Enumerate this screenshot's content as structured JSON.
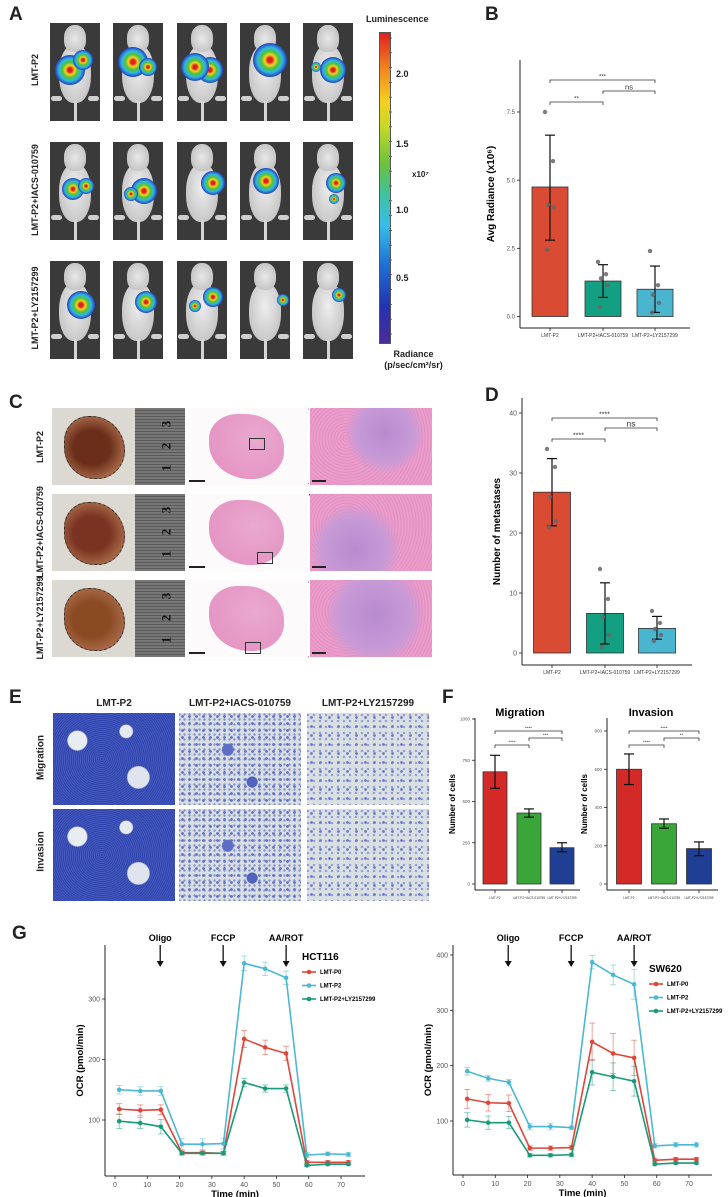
{
  "panel_labels": {
    "a": "A",
    "b": "B",
    "c": "C",
    "d": "D",
    "e": "E",
    "f": "F",
    "g": "G"
  },
  "panel_a": {
    "row_labels": [
      "LMT-P2",
      "LMT-P2+IACS-010759",
      "LMT-P2+LY2157299"
    ],
    "colorbar": {
      "title": "Luminescence",
      "ticks": [
        "2.0",
        "1.5",
        "1.0",
        "0.5"
      ],
      "multiplier": "x10⁷",
      "unit_line1": "Radiance",
      "unit_line2": "(p/sec/cm²/sr)",
      "colormap": [
        "#4b2c9a",
        "#2233b0",
        "#1f6fd6",
        "#38bde8",
        "#3fc2a0",
        "#6cc23a",
        "#c8d82a",
        "#f5d020",
        "#f08a20",
        "#e02020"
      ]
    }
  },
  "panel_c": {
    "row_labels": [
      "LMT-P2",
      "LMT-P2+IACS-010759",
      "LMT-P2+LY2157299"
    ],
    "ruler_marks": [
      "1",
      "2",
      "3"
    ]
  },
  "panel_e": {
    "column_headers": [
      "LMT-P2",
      "LMT-P2+IACS-010759",
      "LMT-P2+LY2157299"
    ],
    "row_labels": [
      "Migration",
      "Invasion"
    ]
  },
  "chart_data": [
    {
      "panel": "B",
      "type": "bar",
      "categories": [
        "LMT-P2",
        "LMT-P2+IACS-010759",
        "LMT-P2+LY2157299"
      ],
      "values": [
        4.75,
        1.3,
        1.0
      ],
      "error_bars": [
        [
          2.8,
          6.65
        ],
        [
          0.7,
          1.9
        ],
        [
          0.15,
          1.85
        ]
      ],
      "points": [
        [
          7.5,
          5.7,
          4.1,
          4.0,
          2.45
        ],
        [
          2.0,
          1.55,
          1.4,
          1.15,
          0.35
        ],
        [
          2.4,
          1.15,
          0.8,
          0.5,
          0.15
        ]
      ],
      "colors": [
        "#d94b33",
        "#13a082",
        "#4ab5cf"
      ],
      "ylabel": "Avg Radiance (x10⁶)",
      "xlabel": "",
      "yticks": [
        "0.0",
        "2.5",
        "5.0",
        "7.5"
      ],
      "ytick_values": [
        0,
        2.5,
        5,
        7.5
      ],
      "ylim": [
        0,
        9
      ],
      "significance": [
        {
          "pair": [
            0,
            1
          ],
          "label": "**"
        },
        {
          "pair": [
            1,
            2
          ],
          "label": "ns"
        },
        {
          "pair": [
            0,
            2
          ],
          "label": "***"
        }
      ]
    },
    {
      "panel": "D",
      "type": "bar",
      "categories": [
        "LMT-P2",
        "LMT-P2+IACS-010759",
        "LMT-P2+LY2157299"
      ],
      "values": [
        26.8,
        6.6,
        4.1
      ],
      "error_bars": [
        [
          21.2,
          32.4
        ],
        [
          1.5,
          11.7
        ],
        [
          2.3,
          6.1
        ]
      ],
      "points": [
        [
          34,
          31,
          26,
          22,
          21
        ],
        [
          14,
          9,
          6,
          3,
          1
        ],
        [
          7,
          5,
          4,
          3,
          2
        ]
      ],
      "colors": [
        "#d94b33",
        "#13a082",
        "#4ab5cf"
      ],
      "ylabel": "Number of metastases",
      "xlabel": "",
      "yticks": [
        "0",
        "10",
        "20",
        "30",
        "40"
      ],
      "ytick_values": [
        0,
        10,
        20,
        30,
        40
      ],
      "ylim": [
        0,
        42
      ],
      "significance": [
        {
          "pair": [
            0,
            1
          ],
          "label": "****"
        },
        {
          "pair": [
            1,
            2
          ],
          "label": "ns"
        },
        {
          "pair": [
            0,
            2
          ],
          "label": "****"
        }
      ]
    },
    {
      "panel": "F",
      "type": "bar",
      "title": "Migration",
      "categories": [
        "LMT-P2",
        "LMT-P2+IACS-010759",
        "LMT-P2+LY2157299"
      ],
      "values": [
        680,
        430,
        220
      ],
      "error_bars": [
        [
          580,
          780
        ],
        [
          405,
          455
        ],
        [
          195,
          250
        ]
      ],
      "colors": [
        "#d42a27",
        "#3aa63a",
        "#1f3f94"
      ],
      "ylabel": "Number of cells",
      "xlabel": "",
      "yticks": [
        "0",
        "250",
        "500",
        "750",
        "1000"
      ],
      "ytick_values": [
        0,
        250,
        500,
        750,
        1000
      ],
      "ylim": [
        0,
        1000
      ],
      "significance": [
        {
          "pair": [
            0,
            1
          ],
          "label": "****"
        },
        {
          "pair": [
            1,
            2
          ],
          "label": "***"
        },
        {
          "pair": [
            0,
            2
          ],
          "label": "****"
        }
      ]
    },
    {
      "panel": "F",
      "type": "bar",
      "title": "Invasion",
      "categories": [
        "LMT-P2",
        "LMT-P2+IACS-010759",
        "LMT-P2+LY2157299"
      ],
      "values": [
        600,
        315,
        185
      ],
      "error_bars": [
        [
          520,
          680
        ],
        [
          292,
          340
        ],
        [
          148,
          220
        ]
      ],
      "colors": [
        "#d42a27",
        "#3aa63a",
        "#1f3f94"
      ],
      "ylabel": "Number of cells",
      "xlabel": "",
      "yticks": [
        "0",
        "200",
        "400",
        "600",
        "800"
      ],
      "ytick_values": [
        0,
        200,
        400,
        600,
        800
      ],
      "ylim": [
        0,
        860
      ],
      "significance": [
        {
          "pair": [
            0,
            1
          ],
          "label": "****"
        },
        {
          "pair": [
            1,
            2
          ],
          "label": "**"
        },
        {
          "pair": [
            0,
            2
          ],
          "label": "****"
        }
      ]
    },
    {
      "panel": "G",
      "type": "line",
      "legend_title": "HCT116",
      "legend_position": "top-right",
      "xlabel": "Time (min)",
      "ylabel": "OCR (pmol/min)",
      "x": [
        1.3,
        7.8,
        14.2,
        20.7,
        27.1,
        33.6,
        40,
        46.5,
        53,
        59.4,
        65.9,
        72.3
      ],
      "xticks": [
        "0",
        "10",
        "20",
        "30",
        "40",
        "50",
        "60",
        "70"
      ],
      "xtick_values": [
        0,
        10,
        20,
        30,
        40,
        50,
        60,
        70
      ],
      "yticks": [
        "100",
        "200",
        "300"
      ],
      "ytick_values": [
        100,
        200,
        300
      ],
      "ylim": [
        20,
        385
      ],
      "injections": [
        {
          "label": "Oligo",
          "time": 14
        },
        {
          "label": "FCCP",
          "time": 33.5
        },
        {
          "label": "AA/ROT",
          "time": 53
        }
      ],
      "series": [
        {
          "name": "LMT-P0",
          "color": "#e0453a",
          "values": [
            118,
            116,
            117,
            46,
            46,
            45,
            234,
            220,
            210,
            30,
            30,
            30
          ],
          "error": [
            9,
            9,
            8,
            3,
            3,
            3,
            14,
            12,
            12,
            3,
            3,
            3
          ]
        },
        {
          "name": "LMT-P2",
          "color": "#4db8d3",
          "values": [
            150,
            148,
            148,
            60,
            60,
            61,
            359,
            350,
            335,
            42,
            44,
            43
          ],
          "error": [
            7,
            7,
            7,
            9,
            9,
            9,
            12,
            11,
            11,
            4,
            3,
            3
          ]
        },
        {
          "name": "LMT-P2+LY2157299",
          "color": "#1a9a7a",
          "values": [
            98,
            95,
            89,
            45,
            45,
            45,
            162,
            152,
            152,
            25,
            27,
            27
          ],
          "error": [
            12,
            9,
            12,
            3,
            3,
            3,
            7,
            6,
            6,
            2,
            2,
            2
          ]
        }
      ]
    },
    {
      "panel": "G",
      "type": "line",
      "legend_title": "SW620",
      "legend_position": "top-right",
      "xlabel": "Time (min)",
      "ylabel": "OCR (pmol/min)",
      "x": [
        1.3,
        7.8,
        14.2,
        20.7,
        27.1,
        33.6,
        40,
        46.5,
        53,
        59.4,
        65.9,
        72.3
      ],
      "xticks": [
        "0",
        "10",
        "20",
        "30",
        "40",
        "50",
        "60",
        "70"
      ],
      "xtick_values": [
        0,
        10,
        20,
        30,
        40,
        50,
        60,
        70
      ],
      "yticks": [
        "100",
        "200",
        "300",
        "400"
      ],
      "ytick_values": [
        100,
        200,
        300,
        400
      ],
      "ylim": [
        15,
        420
      ],
      "injections": [
        {
          "label": "Oligo",
          "time": 14
        },
        {
          "label": "FCCP",
          "time": 33.5
        },
        {
          "label": "AA/ROT",
          "time": 53
        }
      ],
      "series": [
        {
          "name": "LMT-P0",
          "color": "#e0453a",
          "values": [
            140,
            133,
            132,
            51,
            51,
            52,
            243,
            222,
            214,
            29,
            31,
            31
          ],
          "error": [
            17,
            15,
            15,
            4,
            4,
            4,
            34,
            36,
            32,
            3,
            3,
            3
          ]
        },
        {
          "name": "LMT-P2",
          "color": "#4db8d3",
          "values": [
            190,
            177,
            170,
            90,
            90,
            88,
            387,
            364,
            347,
            55,
            57,
            57
          ],
          "error": [
            7,
            5,
            5,
            6,
            6,
            3,
            12,
            18,
            27,
            4,
            4,
            4
          ]
        },
        {
          "name": "LMT-P2+LY2157299",
          "color": "#1a9a7a",
          "values": [
            102,
            97,
            97,
            38,
            38,
            39,
            188,
            180,
            172,
            22,
            24,
            24
          ],
          "error": [
            13,
            12,
            11,
            3,
            3,
            3,
            23,
            25,
            27,
            2,
            2,
            2
          ]
        }
      ]
    }
  ]
}
